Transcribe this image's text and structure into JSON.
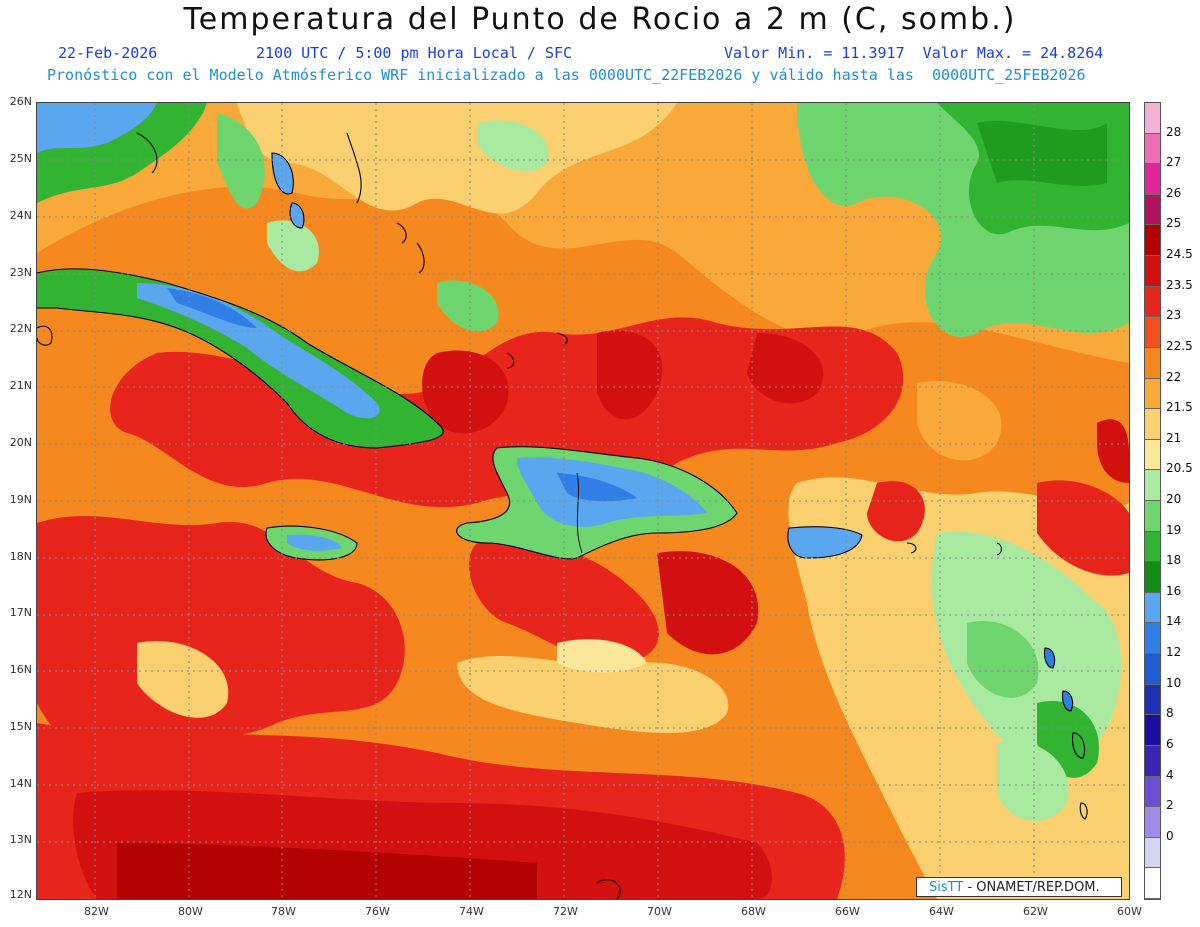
{
  "title": "Temperatura del Punto de Rocio a 2 m (C, somb.)",
  "subtitle": {
    "date": "22-Feb-2026",
    "time": "2100 UTC / 5:00 pm Hora Local / SFC",
    "minmax": "Valor Min. = 11.3917  Valor Max. = 24.8264"
  },
  "model_note": "Pronóstico con el Modelo Atmósferico WRF inicializado a las 0000UTC_22FEB2026 y válido hasta las  0000UTC_25FEB2026",
  "credit": {
    "brand": "SisTT",
    "text": "- ONAMET/REP.DOM."
  },
  "lat_labels": [
    "26N",
    "25N",
    "24N",
    "23N",
    "22N",
    "21N",
    "20N",
    "19N",
    "18N",
    "17N",
    "16N",
    "15N",
    "14N",
    "13N",
    "12N"
  ],
  "lon_labels": [
    "82W",
    "80W",
    "78W",
    "76W",
    "74W",
    "72W",
    "70W",
    "68W",
    "66W",
    "64W",
    "62W",
    "60W"
  ],
  "colorbar": [
    {
      "label": "28",
      "color": "#f2b3d6"
    },
    {
      "label": "27",
      "color": "#ee6fb8"
    },
    {
      "label": "26",
      "color": "#e0259a"
    },
    {
      "label": "25",
      "color": "#b0125f"
    },
    {
      "label": "24.5",
      "color": "#b30000"
    },
    {
      "label": "23.5",
      "color": "#d31010"
    },
    {
      "label": "23",
      "color": "#e8251c"
    },
    {
      "label": "22.5",
      "color": "#f0511e"
    },
    {
      "label": "22",
      "color": "#f5881e"
    },
    {
      "label": "21.5",
      "color": "#f8a93a"
    },
    {
      "label": "21",
      "color": "#fbd070"
    },
    {
      "label": "20.5",
      "color": "#fbe79a"
    },
    {
      "label": "20",
      "color": "#aaeaa0"
    },
    {
      "label": "19",
      "color": "#6fd66f"
    },
    {
      "label": "18",
      "color": "#32b432"
    },
    {
      "label": "16",
      "color": "#138c13"
    },
    {
      "label": "14",
      "color": "#5aa7f0"
    },
    {
      "label": "12",
      "color": "#2f7fe6"
    },
    {
      "label": "10",
      "color": "#1f5bd1"
    },
    {
      "label": "8",
      "color": "#1e2fb4"
    },
    {
      "label": "6",
      "color": "#1a0ea0"
    },
    {
      "label": "4",
      "color": "#3b23b3"
    },
    {
      "label": "2",
      "color": "#6a4ed3"
    },
    {
      "label": "0",
      "color": "#a08ce8"
    },
    {
      "label": "",
      "color": "#d6d6f2"
    },
    {
      "label": "",
      "color": "#ffffff"
    }
  ]
}
